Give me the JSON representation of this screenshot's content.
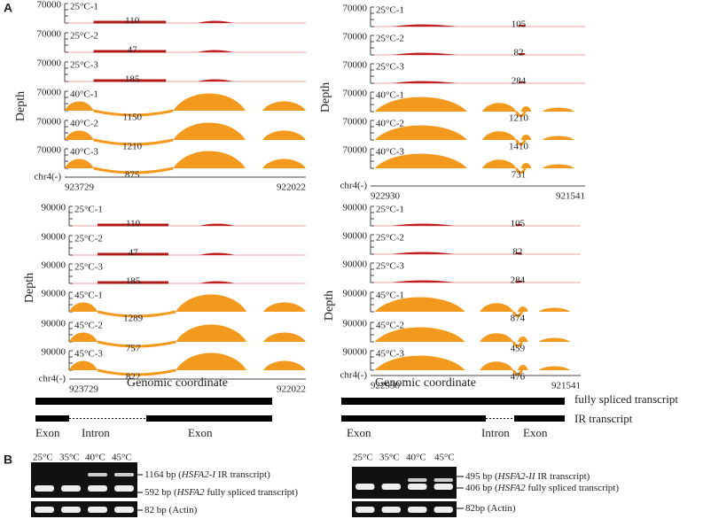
{
  "figure": {
    "panel_a_label": "A",
    "panel_b_label": "B",
    "depth_label": "Depth",
    "x_axis_label": "Genomic coordinate",
    "blocks": [
      {
        "ymax": "70000",
        "chrom": "chr4(-)",
        "start": "923729",
        "end": "922022",
        "tracks": [
          {
            "name": "25°C-1",
            "count": "110"
          },
          {
            "name": "25°C-2",
            "count": "47"
          },
          {
            "name": "25°C-3",
            "count": "185"
          },
          {
            "name": "40°C-1",
            "count": "1150"
          },
          {
            "name": "40°C-2",
            "count": "1210"
          },
          {
            "name": "40°C-3",
            "count": "875"
          }
        ]
      },
      {
        "ymax": "70000",
        "chrom": "chr4(-)",
        "start": "922930",
        "end": "921541",
        "tracks": [
          {
            "name": "25°C-1",
            "count": "105"
          },
          {
            "name": "25°C-2",
            "count": "82"
          },
          {
            "name": "25°C-3",
            "count": "284"
          },
          {
            "name": "40°C-1",
            "count": "1210"
          },
          {
            "name": "40°C-2",
            "count": "1410"
          },
          {
            "name": "40°C-3",
            "count": "731"
          }
        ]
      },
      {
        "ymax": "90000",
        "chrom": "chr4(-)",
        "start": "923729",
        "end": "922022",
        "tracks": [
          {
            "name": "25°C-1",
            "count": "110"
          },
          {
            "name": "25°C-2",
            "count": "47"
          },
          {
            "name": "25°C-3",
            "count": "185"
          },
          {
            "name": "45°C-1",
            "count": "1289"
          },
          {
            "name": "45°C-2",
            "count": "757"
          },
          {
            "name": "45°C-3",
            "count": "822"
          }
        ]
      },
      {
        "ymax": "90000",
        "chrom": "chr4(-)",
        "start": "922930",
        "end": "921541",
        "tracks": [
          {
            "name": "25°C-1",
            "count": "105"
          },
          {
            "name": "25°C-2",
            "count": "82"
          },
          {
            "name": "25°C-3",
            "count": "284"
          },
          {
            "name": "45°C-1",
            "count": "874"
          },
          {
            "name": "45°C-2",
            "count": "459"
          },
          {
            "name": "45°C-3",
            "count": "476"
          }
        ]
      }
    ],
    "gene_models": {
      "fully_spliced": "fully spliced  transcript",
      "ir": "IR transcript",
      "left_labels": [
        "Exon",
        "Intron",
        "Exon"
      ],
      "right_labels": [
        "Exon",
        "Intron",
        "Exon"
      ]
    },
    "gels": [
      {
        "lanes": [
          "25°C",
          "35°C",
          "40°C",
          "45°C"
        ],
        "bands": [
          {
            "pre": "1164 bp (",
            "ital": "HSFA2-I",
            "post": " IR transcript)"
          },
          {
            "pre": "592 bp (",
            "ital": "HSFA2",
            "post": "  fully spliced transcript)"
          },
          {
            "pre": "82 bp (Actin)",
            "ital": "",
            "post": ""
          }
        ]
      },
      {
        "lanes": [
          "25°C",
          "35°C",
          "40°C",
          "45°C"
        ],
        "bands": [
          {
            "pre": "495 bp (",
            "ital": "HSFA2-II",
            "post": " IR transcript)"
          },
          {
            "pre": "406 bp (",
            "ital": "HSFA2",
            "post": " fully spliced transcript)"
          },
          {
            "pre": "82bp (Actin)",
            "ital": "",
            "post": ""
          }
        ]
      }
    ]
  }
}
